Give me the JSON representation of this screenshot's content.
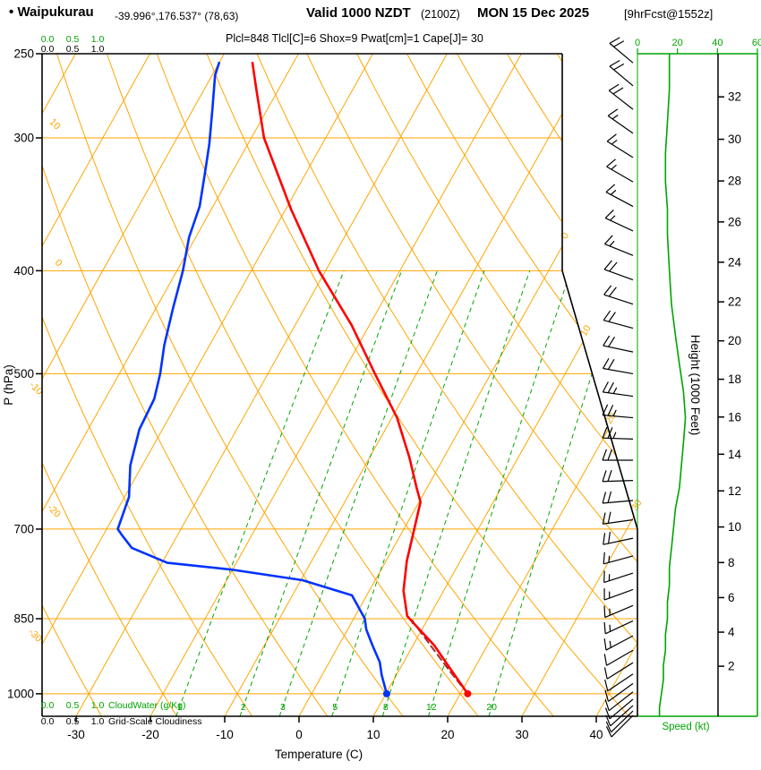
{
  "header": {
    "bullet": "•",
    "station": "Waipukurau",
    "coords": "-39.996°,176.537° (78,63)",
    "valid_main": "Valid 1000 NZDT",
    "valid_z": "(2100Z)",
    "valid_date": "MON 15 Dec 2025",
    "fcst": "[9hrFcst@1552z]",
    "indices": "Plcl=848 Tlcl[C]=6 Shox=9 Pwat[cm]=1 Cape[J]= 30"
  },
  "colors": {
    "grid": "#ffa500",
    "moisture": "#00a400",
    "temperature": "#ff0000",
    "dewpoint": "#0033ff",
    "parcel": "#a03030",
    "indices": "#cc0066",
    "axis": "#000000"
  },
  "chart_data": {
    "type": "line",
    "variant": "skew-t log-p forecast sounding",
    "pressure_axis": {
      "label": "P (hPa)",
      "scale": "log",
      "range": [
        250,
        1050
      ],
      "ticks": [
        250,
        300,
        400,
        500,
        700,
        850,
        1000
      ]
    },
    "temperature_axis": {
      "label": "Temperature (C)",
      "ticks": [
        -30,
        -20,
        -10,
        0,
        10,
        20,
        30,
        40
      ]
    },
    "height_axis": {
      "label": "Height (1000 Feet)",
      "ticks": [
        2,
        4,
        6,
        8,
        10,
        12,
        14,
        16,
        18,
        20,
        22,
        24,
        26,
        28,
        30,
        32
      ]
    },
    "speed_axis": {
      "label": "Speed (kt)",
      "ticks": [
        0,
        20,
        40,
        60
      ]
    },
    "cloudwater_axis": {
      "label": "CloudWater (g/Kg)",
      "ticks": [
        "0.0",
        "0.5",
        "1.0"
      ]
    },
    "cloudiness_axis": {
      "label": "Grid-Scale Cloudiness",
      "ticks": [
        "0.0",
        "0.5",
        "1.0"
      ]
    },
    "grid_hints": {
      "isotherm_step": 10,
      "isotherm_range": [
        -80,
        40
      ],
      "dry_adiabat_range": [
        -30,
        110
      ],
      "legend_position": "none",
      "grid": "on"
    },
    "isotherm_labels": [
      0,
      10,
      20,
      30
    ],
    "dry_adiabat_labels": [
      10,
      0,
      -10,
      -20,
      -30
    ],
    "mixing_ratio_lines": [
      1,
      2,
      3,
      5,
      8,
      12,
      20
    ],
    "temperature_profile": [
      [
        1000,
        21.0
      ],
      [
        950,
        17.0
      ],
      [
        900,
        12.8
      ],
      [
        860,
        8.6
      ],
      [
        845,
        7.0
      ],
      [
        800,
        4.6
      ],
      [
        750,
        2.8
      ],
      [
        700,
        1.4
      ],
      [
        660,
        0.2
      ],
      [
        640,
        -1.4
      ],
      [
        600,
        -4.6
      ],
      [
        550,
        -9.3
      ],
      [
        500,
        -15.6
      ],
      [
        450,
        -22.4
      ],
      [
        400,
        -30.9
      ],
      [
        350,
        -39.3
      ],
      [
        300,
        -48.3
      ],
      [
        270,
        -53.0
      ],
      [
        255,
        -55.5
      ]
    ],
    "dewpoint_profile": [
      [
        1000,
        10.1
      ],
      [
        960,
        8.0
      ],
      [
        934,
        6.8
      ],
      [
        900,
        4.5
      ],
      [
        870,
        2.5
      ],
      [
        850,
        1.5
      ],
      [
        808,
        -2.0
      ],
      [
        782,
        -9.8
      ],
      [
        764,
        -20.3
      ],
      [
        753,
        -29.3
      ],
      [
        729,
        -35.2
      ],
      [
        710,
        -37.4
      ],
      [
        700,
        -38.5
      ],
      [
        653,
        -39.4
      ],
      [
        610,
        -41.6
      ],
      [
        564,
        -43.1
      ],
      [
        528,
        -43.4
      ],
      [
        500,
        -44.5
      ],
      [
        470,
        -46.1
      ],
      [
        434,
        -47.7
      ],
      [
        400,
        -49.2
      ],
      [
        372,
        -50.9
      ],
      [
        348,
        -51.8
      ],
      [
        325,
        -53.5
      ],
      [
        304,
        -55.2
      ],
      [
        281,
        -57.5
      ],
      [
        262,
        -59.6
      ],
      [
        255,
        -60.0
      ]
    ],
    "parcel_path": [
      [
        1000,
        21.0
      ],
      [
        950,
        16.7
      ],
      [
        900,
        12.3
      ],
      [
        848,
        7.5
      ]
    ],
    "surface_dots": {
      "temperature": {
        "p": 1000,
        "t": 21.0
      },
      "dewpoint": {
        "p": 1000,
        "t": 10.1
      }
    },
    "wind_barbs": [
      [
        255,
        310,
        22
      ],
      [
        268,
        310,
        20
      ],
      [
        282,
        308,
        18
      ],
      [
        297,
        305,
        16
      ],
      [
        313,
        302,
        15
      ],
      [
        330,
        300,
        15
      ],
      [
        348,
        298,
        15
      ],
      [
        367,
        295,
        16
      ],
      [
        387,
        292,
        17
      ],
      [
        408,
        290,
        18
      ],
      [
        430,
        288,
        19
      ],
      [
        453,
        285,
        20
      ],
      [
        477,
        282,
        21
      ],
      [
        500,
        280,
        22
      ],
      [
        525,
        278,
        23
      ],
      [
        550,
        275,
        24
      ],
      [
        576,
        272,
        23
      ],
      [
        603,
        270,
        22
      ],
      [
        630,
        268,
        21
      ],
      [
        658,
        265,
        20
      ],
      [
        686,
        262,
        19
      ],
      [
        714,
        258,
        18
      ],
      [
        742,
        255,
        17
      ],
      [
        770,
        252,
        16
      ],
      [
        798,
        250,
        15
      ],
      [
        826,
        247,
        14
      ],
      [
        854,
        245,
        13
      ],
      [
        882,
        242,
        13
      ],
      [
        910,
        240,
        12
      ],
      [
        935,
        238,
        12
      ],
      [
        958,
        236,
        11
      ],
      [
        978,
        234,
        11
      ],
      [
        996,
        232,
        10
      ],
      [
        1012,
        230,
        9
      ],
      [
        1026,
        228,
        9
      ],
      [
        1038,
        226,
        8
      ],
      [
        1048,
        225,
        8
      ]
    ],
    "speed_profile": [
      [
        250,
        16
      ],
      [
        270,
        16
      ],
      [
        290,
        15
      ],
      [
        310,
        14
      ],
      [
        330,
        14
      ],
      [
        350,
        15
      ],
      [
        370,
        15
      ],
      [
        400,
        16
      ],
      [
        430,
        17
      ],
      [
        460,
        19
      ],
      [
        490,
        21
      ],
      [
        520,
        23
      ],
      [
        550,
        24
      ],
      [
        580,
        23
      ],
      [
        610,
        22
      ],
      [
        640,
        21
      ],
      [
        670,
        19
      ],
      [
        700,
        18
      ],
      [
        730,
        17
      ],
      [
        760,
        16
      ],
      [
        790,
        16
      ],
      [
        820,
        15
      ],
      [
        850,
        15
      ],
      [
        880,
        14
      ],
      [
        910,
        14
      ],
      [
        940,
        13
      ],
      [
        970,
        13
      ],
      [
        1000,
        12
      ],
      [
        1030,
        11
      ],
      [
        1050,
        11
      ]
    ]
  }
}
